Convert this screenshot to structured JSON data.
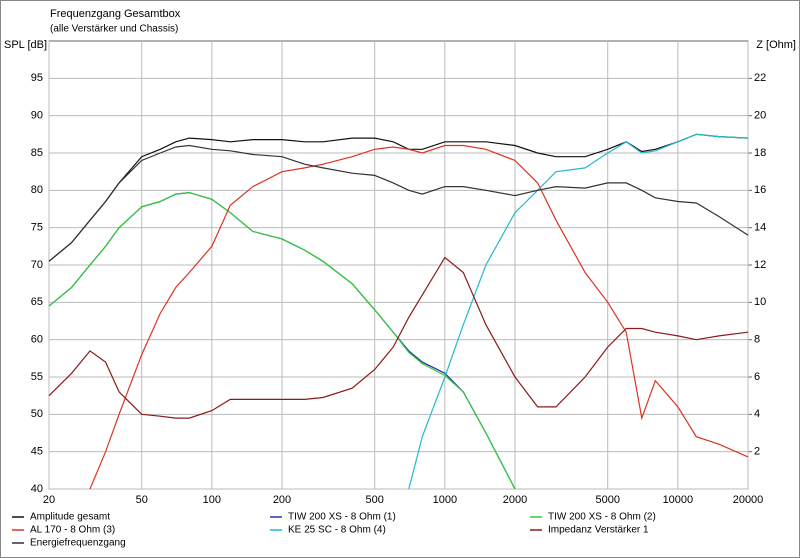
{
  "chart_data": {
    "type": "line",
    "title": "Frequenzgang Gesamtbox",
    "subtitle": "(alle Verstärker und Chassis)",
    "y_label": "SPL [dB]",
    "y2_label": "Z [Ohm]",
    "log_x": true,
    "grid": true,
    "legend": "bottom",
    "x": [
      20,
      25,
      30,
      35,
      40,
      50,
      60,
      70,
      80,
      100,
      120,
      150,
      200,
      250,
      300,
      400,
      500,
      600,
      700,
      800,
      1000,
      1200,
      1500,
      2000,
      2500,
      3000,
      4000,
      5000,
      6000,
      7000,
      8000,
      10000,
      12000,
      15000,
      20000
    ],
    "xlim": [
      20,
      20000
    ],
    "xticks": [
      20,
      50,
      100,
      200,
      500,
      1000,
      2000,
      5000,
      10000,
      20000
    ],
    "ylim": [
      40,
      100
    ],
    "yticks": [
      40,
      45,
      50,
      55,
      60,
      65,
      70,
      75,
      80,
      85,
      90,
      95
    ],
    "y2lim": [
      0,
      24
    ],
    "y2ticks": [
      2,
      4,
      6,
      8,
      10,
      12,
      14,
      16,
      18,
      20,
      22
    ],
    "series": [
      {
        "name": "Amplitude gesamt",
        "color": "#111111",
        "values": [
          70.5,
          73,
          76,
          78.5,
          81,
          84.5,
          85.5,
          86.5,
          87,
          86.8,
          86.5,
          86.8,
          86.8,
          86.5,
          86.5,
          87,
          87,
          86.5,
          85.5,
          85.5,
          86.5,
          86.5,
          86.5,
          86,
          85,
          84.5,
          84.5,
          85.5,
          86.5,
          85.2,
          85.5,
          86.5,
          87.5,
          87.2,
          87
        ]
      },
      {
        "name": "TIW 200 XS - 8 Ohm (1)",
        "color": "#2233aa",
        "values": [
          64.5,
          67,
          70,
          72.5,
          75,
          77.8,
          78.5,
          79.5,
          79.7,
          78.8,
          77,
          74.5,
          73.5,
          72,
          70.5,
          67.5,
          64,
          61,
          58.5,
          57,
          55.5,
          53,
          47.5,
          40,
          null,
          null,
          null,
          null,
          null,
          null,
          null,
          null,
          null,
          null,
          null
        ]
      },
      {
        "name": "TIW 200 XS - 8 Ohm (2)",
        "color": "#33cc33",
        "values": [
          64.5,
          67,
          70,
          72.5,
          75,
          77.8,
          78.5,
          79.5,
          79.7,
          78.8,
          77,
          74.5,
          73.5,
          72,
          70.5,
          67.5,
          64,
          61,
          58.3,
          56.8,
          55.2,
          53,
          47.5,
          40,
          null,
          null,
          null,
          null,
          null,
          null,
          null,
          null,
          null,
          null,
          null
        ]
      },
      {
        "name": "AL 170 - 8 Ohm (3)",
        "color": "#dd3322",
        "values": [
          null,
          null,
          40,
          45,
          50,
          58,
          63.5,
          67,
          69,
          72.5,
          78,
          80.5,
          82.5,
          83,
          83.5,
          84.5,
          85.5,
          85.8,
          85.5,
          85,
          86,
          86,
          85.5,
          84,
          81,
          76,
          69,
          65,
          61,
          49.5,
          54.5,
          51,
          47,
          46,
          44.3
        ]
      },
      {
        "name": "KE 25 SC - 8 Ohm    (4)",
        "color": "#22bbcc",
        "values": [
          null,
          null,
          null,
          null,
          null,
          null,
          null,
          null,
          null,
          null,
          null,
          null,
          null,
          null,
          null,
          null,
          null,
          null,
          40,
          47,
          55,
          62,
          70,
          77,
          80,
          82.5,
          83,
          85,
          86.5,
          85,
          85.3,
          86.5,
          87.5,
          87.2,
          87
        ]
      },
      {
        "name": "Impedanz Verstärker 1",
        "color": "#8b1a1a",
        "axis": "y2",
        "values": [
          5,
          6.2,
          7.4,
          6.8,
          5.2,
          4,
          3.9,
          3.8,
          3.8,
          4.2,
          4.8,
          4.8,
          4.8,
          4.8,
          4.9,
          5.4,
          6.4,
          7.6,
          9.2,
          10.4,
          12.4,
          11.6,
          8.8,
          6,
          4.4,
          4.4,
          6,
          7.6,
          8.6,
          8.6,
          8.4,
          8.2,
          8,
          8.2,
          8.4
        ]
      },
      {
        "name": "Energiefrequenzgang",
        "color": "#333333",
        "values": [
          70.5,
          73,
          76,
          78.5,
          81,
          84,
          85,
          85.8,
          86,
          85.5,
          85.3,
          84.8,
          84.5,
          83.5,
          83,
          82.3,
          82,
          81,
          80,
          79.5,
          80.5,
          80.5,
          80,
          79.3,
          80,
          80.5,
          80.3,
          81,
          81,
          80,
          79,
          78.5,
          78.3,
          76.5,
          74
        ]
      }
    ]
  }
}
